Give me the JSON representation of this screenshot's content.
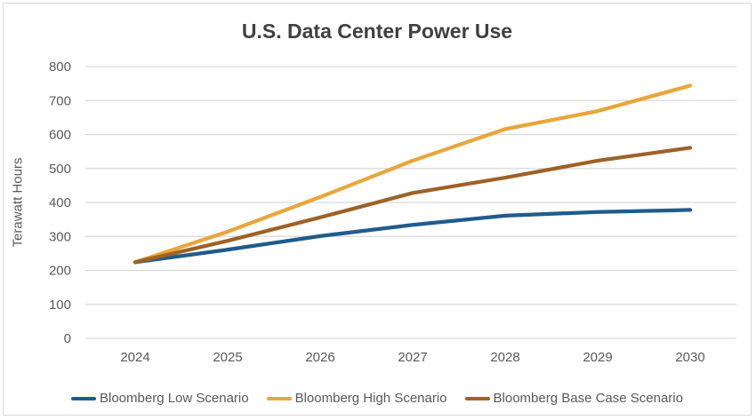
{
  "chart_data": {
    "type": "line",
    "title": "U.S. Data Center Power Use",
    "xlabel": "",
    "ylabel": "Terawatt Hours",
    "x": [
      2024,
      2025,
      2026,
      2027,
      2028,
      2029,
      2030
    ],
    "series": [
      {
        "name": "Bloomberg Low Scenario",
        "color": "#1f5c8b",
        "values": [
          224,
          261,
          301,
          334,
          361,
          372,
          378
        ]
      },
      {
        "name": "Bloomberg High Scenario",
        "color": "#e9a63a",
        "values": [
          224,
          314,
          416,
          523,
          616,
          669,
          744
        ]
      },
      {
        "name": "Bloomberg Base Case Scenario",
        "color": "#9d6227",
        "values": [
          224,
          287,
          356,
          428,
          473,
          523,
          561
        ]
      }
    ],
    "ylim": [
      0,
      800
    ],
    "ytick_step": 100,
    "yticks": [
      0,
      100,
      200,
      300,
      400,
      500,
      600,
      700,
      800
    ],
    "grid": true,
    "legend_position": "bottom",
    "colors": {
      "gridline": "#d9d9d9",
      "tick_label": "#595959",
      "title": "#404040",
      "frame_border": "#d9d9d9",
      "background": "#ffffff"
    }
  }
}
